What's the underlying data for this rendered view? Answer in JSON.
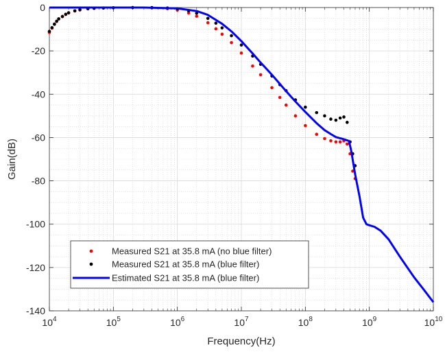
{
  "chart_data": {
    "type": "scatter",
    "title": "",
    "xlabel": "Frequency(Hz)",
    "ylabel": "Gain(dB)",
    "xscale": "log",
    "xlim": [
      10000,
      10000000000
    ],
    "ylim": [
      -140,
      0
    ],
    "grid": true,
    "minor_grid": true,
    "legend_position": "lower-left",
    "x_ticks": [
      {
        "base": "10",
        "exp": "4",
        "value": 10000
      },
      {
        "base": "10",
        "exp": "5",
        "value": 100000
      },
      {
        "base": "10",
        "exp": "6",
        "value": 1000000
      },
      {
        "base": "10",
        "exp": "7",
        "value": 10000000
      },
      {
        "base": "10",
        "exp": "8",
        "value": 100000000
      },
      {
        "base": "10",
        "exp": "9",
        "value": 1000000000
      },
      {
        "base": "10",
        "exp": "10",
        "value": 10000000000
      }
    ],
    "y_ticks": [
      "0",
      "-20",
      "-40",
      "-60",
      "-80",
      "-100",
      "-120",
      "-140"
    ],
    "series": [
      {
        "name": "Measured S21 at 35.8 mA (no blue filter)",
        "style": "dots",
        "color": "#ff0000",
        "points": [
          [
            10000,
            -11.5
          ],
          [
            11000,
            -9.5
          ],
          [
            12000,
            -7.8
          ],
          [
            13000,
            -6.4
          ],
          [
            14000,
            -5.3
          ],
          [
            16000,
            -4.2
          ],
          [
            18000,
            -3.2
          ],
          [
            20000,
            -2.5
          ],
          [
            25000,
            -1.6
          ],
          [
            30000,
            -1.1
          ],
          [
            40000,
            -0.6
          ],
          [
            50000,
            -0.4
          ],
          [
            70000,
            -0.2
          ],
          [
            100000,
            -0.1
          ],
          [
            200000,
            0
          ],
          [
            400000,
            -0.1
          ],
          [
            700000,
            -0.5
          ],
          [
            1000000,
            -1.2
          ],
          [
            1500000,
            -2.5
          ],
          [
            2000000,
            -4
          ],
          [
            3000000,
            -7
          ],
          [
            4000000,
            -9.8
          ],
          [
            5000000,
            -12.3
          ],
          [
            7000000,
            -16.2
          ],
          [
            10000000,
            -21
          ],
          [
            15000000,
            -27
          ],
          [
            20000000,
            -31
          ],
          [
            30000000,
            -37
          ],
          [
            40000000,
            -41.5
          ],
          [
            50000000,
            -45
          ],
          [
            70000000,
            -50
          ],
          [
            100000000,
            -54.5
          ],
          [
            150000000,
            -58.5
          ],
          [
            200000000,
            -60.5
          ],
          [
            250000000,
            -61.5
          ],
          [
            300000000,
            -62
          ],
          [
            350000000,
            -62
          ],
          [
            400000000,
            -61.5
          ],
          [
            450000000,
            -63
          ],
          [
            500000000,
            -67.5
          ],
          [
            550000000,
            -75.5
          ],
          [
            600000000,
            -79
          ]
        ]
      },
      {
        "name": "Measured S21 at 35.8 mA (blue filter)",
        "style": "dots",
        "color": "#000000",
        "points": [
          [
            10000,
            -11
          ],
          [
            11000,
            -9.3
          ],
          [
            12000,
            -7.6
          ],
          [
            13000,
            -6.3
          ],
          [
            14000,
            -5.2
          ],
          [
            16000,
            -4.1
          ],
          [
            18000,
            -3.1
          ],
          [
            20000,
            -2.4
          ],
          [
            25000,
            -1.5
          ],
          [
            30000,
            -1.0
          ],
          [
            40000,
            -0.5
          ],
          [
            50000,
            -0.3
          ],
          [
            70000,
            -0.2
          ],
          [
            100000,
            -0.1
          ],
          [
            200000,
            0
          ],
          [
            400000,
            0
          ],
          [
            700000,
            -0.2
          ],
          [
            1000000,
            -0.6
          ],
          [
            1500000,
            -1.5
          ],
          [
            2000000,
            -2.6
          ],
          [
            3000000,
            -5
          ],
          [
            4000000,
            -7.2
          ],
          [
            5000000,
            -9.4
          ],
          [
            7000000,
            -13
          ],
          [
            10000000,
            -17.3
          ],
          [
            15000000,
            -22.4
          ],
          [
            20000000,
            -26.2
          ],
          [
            30000000,
            -31.6
          ],
          [
            40000000,
            -35.6
          ],
          [
            50000000,
            -38.4
          ],
          [
            70000000,
            -42.6
          ],
          [
            100000000,
            -46
          ],
          [
            150000000,
            -48.5
          ],
          [
            200000000,
            -50
          ],
          [
            250000000,
            -51.5
          ],
          [
            300000000,
            -52
          ],
          [
            350000000,
            -51
          ],
          [
            400000000,
            -50.5
          ],
          [
            450000000,
            -53
          ],
          [
            500000000,
            -62
          ],
          [
            550000000,
            -67.5
          ],
          [
            600000000,
            -73
          ]
        ]
      },
      {
        "name": "Estimated S21 at 35.8 mA (blue filter)",
        "style": "line",
        "color": "#0000ff",
        "points": [
          [
            10000,
            0
          ],
          [
            100000,
            0
          ],
          [
            300000,
            0
          ],
          [
            1000000,
            -0.4
          ],
          [
            2000000,
            -1.6
          ],
          [
            3000000,
            -3.4
          ],
          [
            5000000,
            -7.5
          ],
          [
            7000000,
            -11
          ],
          [
            10000000,
            -15.5
          ],
          [
            15000000,
            -21.2
          ],
          [
            20000000,
            -25.4
          ],
          [
            30000000,
            -31
          ],
          [
            50000000,
            -38.6
          ],
          [
            70000000,
            -43.4
          ],
          [
            100000000,
            -48.2
          ],
          [
            150000000,
            -53.4
          ],
          [
            200000000,
            -56.6
          ],
          [
            250000000,
            -58.4
          ],
          [
            300000000,
            -59.8
          ],
          [
            400000000,
            -60.8
          ],
          [
            480000000,
            -61.6
          ],
          [
            520000000,
            -66
          ],
          [
            600000000,
            -77
          ],
          [
            700000000,
            -87
          ],
          [
            800000000,
            -97
          ],
          [
            900000000,
            -100
          ],
          [
            1000000000,
            -100.5
          ],
          [
            1200000000,
            -101.2
          ],
          [
            1500000000,
            -103
          ],
          [
            2000000000,
            -107
          ],
          [
            3000000000,
            -115
          ],
          [
            5000000000,
            -124.5
          ],
          [
            7000000000,
            -130
          ],
          [
            10000000000,
            -136
          ]
        ]
      }
    ]
  }
}
